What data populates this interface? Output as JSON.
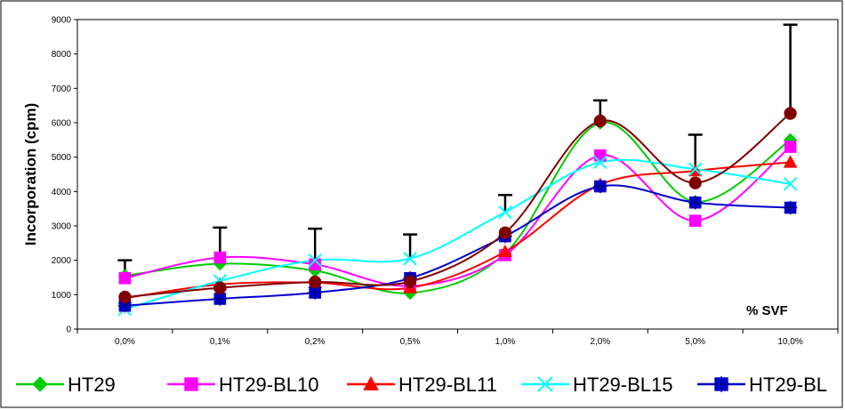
{
  "chart_data": {
    "type": "line",
    "title": "",
    "xlabel": "",
    "ylabel": "Incorporation (cpm)",
    "annotation": "% SVF",
    "categories": [
      "0,0%",
      "0,1%",
      "0,2%",
      "0,5%",
      "1,0%",
      "2,0%",
      "5,0%",
      "10,0%"
    ],
    "ylim": [
      0,
      9000
    ],
    "yticks": [
      "0",
      "1000",
      "2000",
      "3000",
      "4000",
      "5000",
      "6000",
      "7000",
      "8000",
      "9000"
    ],
    "grid": false,
    "legend_position": "bottom",
    "series": [
      {
        "name": "HT29",
        "color": "#00cc00",
        "marker": "diamond",
        "values": [
          1550,
          1900,
          1700,
          1050,
          2200,
          6000,
          3700,
          5500
        ]
      },
      {
        "name": "HT29-BL10",
        "color": "#ff00ff",
        "marker": "square",
        "values": [
          1480,
          2080,
          1880,
          1250,
          2150,
          5050,
          3150,
          5300
        ]
      },
      {
        "name": "HT29-BL11",
        "color": "#ff0000",
        "marker": "triangle",
        "values": [
          900,
          1300,
          1350,
          1200,
          2250,
          4200,
          4600,
          4850
        ]
      },
      {
        "name": "HT29-BL15",
        "color": "#00ffff",
        "marker": "x",
        "values": [
          580,
          1400,
          2000,
          2050,
          3400,
          4850,
          4650,
          4220
        ]
      },
      {
        "name": "HT29-BL",
        "color": "#0000cc",
        "marker": "square-star",
        "values": [
          680,
          880,
          1060,
          1480,
          2700,
          4150,
          3680,
          3530
        ]
      },
      {
        "name": "",
        "color": "#800000",
        "marker": "circle",
        "values": [
          930,
          1200,
          1370,
          1380,
          2800,
          6050,
          4250,
          6270
        ]
      }
    ],
    "error_bar_tops": [
      2000,
      2950,
      2920,
      2750,
      3900,
      6650,
      5650,
      8850
    ]
  },
  "legend": {
    "items": [
      "HT29",
      "HT29-BL10",
      "HT29-BL11",
      "HT29-BL15",
      "HT29-BL"
    ]
  }
}
